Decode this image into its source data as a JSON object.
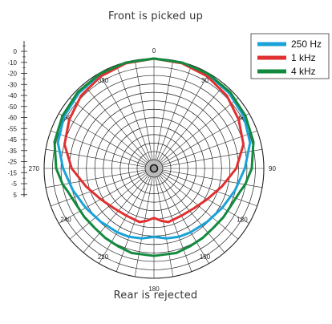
{
  "captions": {
    "top": "Front is picked up",
    "bottom": "Rear is rejected"
  },
  "chart_data": {
    "type": "polar",
    "angle_labels": [
      "0",
      "30",
      "60",
      "90",
      "120",
      "150",
      "180",
      "210",
      "240",
      "270",
      "300",
      "330"
    ],
    "radial_scale_labels": [
      "0",
      "-10",
      "-20",
      "-30",
      "-40",
      "-50",
      "-60",
      "-55",
      "-45",
      "-35",
      "-25",
      "-15",
      "-5",
      "5"
    ],
    "radial_range_db": [
      -60,
      0
    ],
    "grid": true,
    "legend_position": "top-right",
    "series": [
      {
        "name": "250 Hz",
        "color": "#1aa3d9",
        "angles_deg": [
          0,
          15,
          30,
          45,
          60,
          75,
          90,
          105,
          120,
          135,
          150,
          160,
          170,
          180,
          190,
          200,
          210,
          225,
          240,
          255,
          270,
          285,
          300,
          315,
          330,
          345,
          360
        ],
        "level_db": [
          0,
          -0.3,
          -0.8,
          -2,
          -3.5,
          -6,
          -11,
          -15,
          -18,
          -20,
          -21,
          -21.5,
          -22.5,
          -24,
          -22.5,
          -21.5,
          -21,
          -20,
          -18,
          -15,
          -11,
          -6,
          -3.5,
          -2,
          -0.8,
          -0.3,
          0
        ]
      },
      {
        "name": "1 kHz",
        "color": "#e03030",
        "angles_deg": [
          0,
          15,
          30,
          45,
          60,
          75,
          90,
          105,
          120,
          135,
          150,
          165,
          172,
          180,
          188,
          195,
          210,
          225,
          240,
          255,
          270,
          285,
          300,
          315,
          330,
          345,
          360
        ],
        "level_db": [
          0,
          -0.6,
          -2,
          -4,
          -7,
          -10,
          -16,
          -23,
          -28,
          -31,
          -32,
          -31.5,
          -33,
          -35,
          -33,
          -31.5,
          -32,
          -31,
          -28,
          -23,
          -16,
          -10,
          -7,
          -4,
          -2,
          -0.6,
          0
        ]
      },
      {
        "name": "4 kHz",
        "color": "#128a3e",
        "angles_deg": [
          0,
          15,
          30,
          45,
          60,
          75,
          90,
          100,
          105,
          115,
          125,
          135,
          145,
          155,
          165,
          180,
          195,
          205,
          215,
          225,
          235,
          245,
          255,
          260,
          270,
          285,
          300,
          315,
          330,
          345,
          360
        ],
        "level_db": [
          0,
          -0.2,
          -0.5,
          -1.2,
          -2.5,
          -4,
          -7,
          -10,
          -12,
          -14,
          -14.5,
          -15,
          -14.5,
          -14,
          -13,
          -13,
          -13,
          -14,
          -14.5,
          -15,
          -14.5,
          -14,
          -12,
          -10,
          -7,
          -4,
          -2.5,
          -1.2,
          -0.5,
          -0.2,
          0
        ]
      }
    ]
  }
}
